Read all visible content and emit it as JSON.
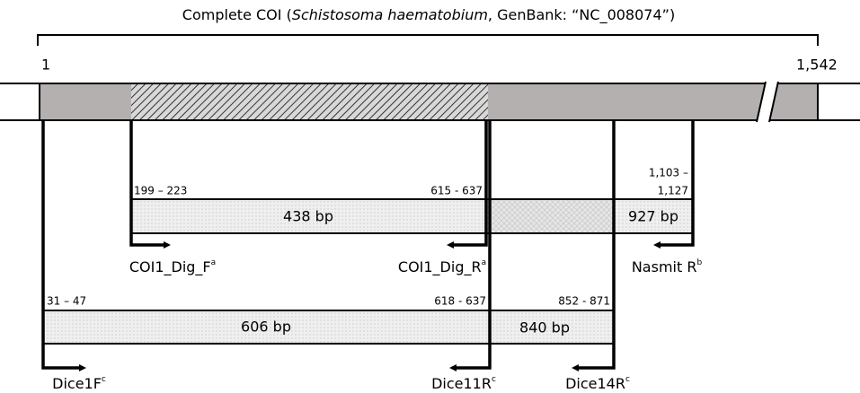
{
  "title": {
    "prefix": "Complete COI (",
    "species": "Schistosoma haematobium",
    "suffix": ", GenBank: “NC_008074”)"
  },
  "genome": {
    "start": "1",
    "end": "1,542"
  },
  "positions": [
    "199 – 223",
    "615 - 637",
    "1,103 –",
    "1,127",
    "31 – 47",
    "618 - 637",
    "852 - 871"
  ],
  "products": [
    "438 bp",
    "927 bp",
    "606 bp",
    "840 bp"
  ],
  "primers": [
    {
      "name": "COI1_Dig_F",
      "note": "a"
    },
    {
      "name": "COI1_Dig_R",
      "note": "a"
    },
    {
      "name": "Nasmit R",
      "note": "b"
    },
    {
      "name": "Dice1F",
      "note": "c"
    },
    {
      "name": "Dice11R",
      "note": "c"
    },
    {
      "name": "Dice14R",
      "note": "c"
    }
  ]
}
